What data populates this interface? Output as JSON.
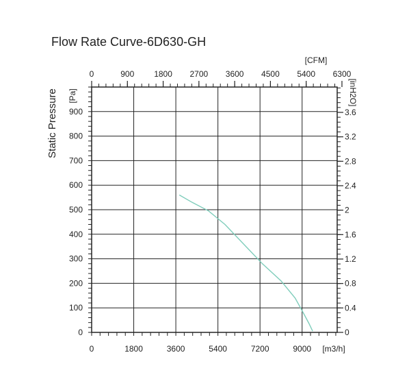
{
  "chart_data": {
    "type": "line",
    "title": "Flow Rate Curve-6D630-GH",
    "ylabel": "Static Pressure",
    "ylabel_unit": "[Pa]",
    "y2label_unit": "[inH2O]",
    "x2label_unit": "[CFM]",
    "xlabel_unit": "[m3/h]",
    "xlim": [
      0,
      10500
    ],
    "ylim": [
      0,
      1000
    ],
    "x_ticks": [
      "0",
      "1800",
      "3600",
      "5400",
      "7200",
      "9000"
    ],
    "x2_ticks": [
      "0",
      "900",
      "1800",
      "2700",
      "3600",
      "4500",
      "5400",
      "6300"
    ],
    "y_ticks": [
      "0",
      "100",
      "200",
      "300",
      "400",
      "500",
      "600",
      "700",
      "800",
      "900"
    ],
    "y2_ticks": [
      "0",
      "0.4",
      "0.8",
      "1.2",
      "1.6",
      "2",
      "2.4",
      "2.8",
      "3.2",
      "3.6"
    ],
    "grid": true,
    "line_color": "#7fcdbb",
    "series": [
      {
        "x": [
          3750,
          4300,
          5000,
          5700,
          6500,
          7300,
          8100,
          8700,
          9050,
          9300,
          9450
        ],
        "y": [
          560,
          530,
          495,
          440,
          360,
          280,
          210,
          140,
          80,
          35,
          5
        ]
      }
    ]
  }
}
